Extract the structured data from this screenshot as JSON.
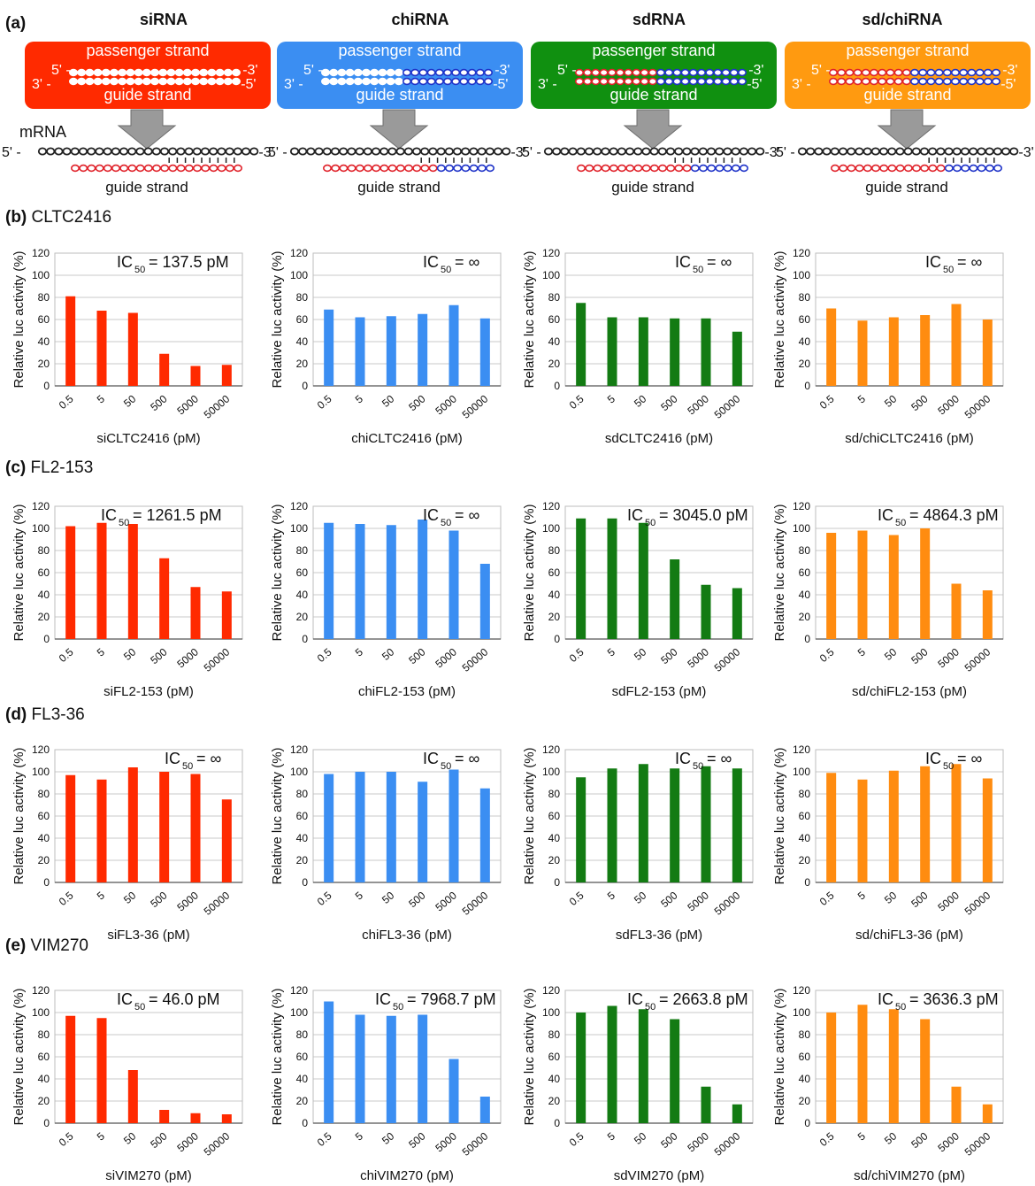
{
  "panel_a": {
    "label": "(a)",
    "columns": [
      {
        "title": "siRNA",
        "bg": "#ff2a00"
      },
      {
        "title": "chiRNA",
        "bg": "#3b8ef2"
      },
      {
        "title": "sdRNA",
        "bg": "#109010"
      },
      {
        "title": "sd/chiRNA",
        "bg": "#ff9a10"
      }
    ],
    "passenger_label": "passenger strand",
    "guide_label": "guide strand",
    "mrna_label": "mRNA",
    "end5": "5'",
    "end3": "3'",
    "end5_dash": "5' -",
    "end3_dash": "-3'",
    "end5_tail": "-5'",
    "end3_head": "3' -"
  },
  "rows": [
    {
      "label_letter": "(b)",
      "label_name": "CLTC2416"
    },
    {
      "label_letter": "(c)",
      "label_name": "FL2-153"
    },
    {
      "label_letter": "(d)",
      "label_name": "FL3-36"
    },
    {
      "label_letter": "(e)",
      "label_name": "VIM270"
    }
  ],
  "colors": {
    "si": "#ff2a00",
    "chi": "#3b8ef2",
    "sd": "#137b13",
    "sdchi": "#ff8c10"
  },
  "chart_data": [
    {
      "type": "bar",
      "row": "b",
      "color": "si",
      "categories": [
        "0.5",
        "5",
        "50",
        "500",
        "5000",
        "50000"
      ],
      "values": [
        81,
        68,
        66,
        29,
        18,
        19
      ],
      "ic50_value": "= 137.5 pM",
      "xlabel": "siCLTC2416 (pM)",
      "ylabel": "Relative luc activity (%)",
      "ylim": [
        0,
        120
      ],
      "yticks": [
        0,
        20,
        40,
        60,
        80,
        100,
        120
      ]
    },
    {
      "type": "bar",
      "row": "b",
      "color": "chi",
      "categories": [
        "0.5",
        "5",
        "50",
        "500",
        "5000",
        "50000"
      ],
      "values": [
        69,
        62,
        63,
        65,
        73,
        61
      ],
      "ic50_value": "= ∞",
      "xlabel": "chiCLTC2416 (pM)",
      "ylabel": "Relative luc activity (%)",
      "ylim": [
        0,
        120
      ],
      "yticks": [
        0,
        20,
        40,
        60,
        80,
        100,
        120
      ]
    },
    {
      "type": "bar",
      "row": "b",
      "color": "sd",
      "categories": [
        "0.5",
        "5",
        "50",
        "500",
        "5000",
        "50000"
      ],
      "values": [
        75,
        62,
        62,
        61,
        61,
        49
      ],
      "ic50_value": "= ∞",
      "xlabel": "sdCLTC2416 (pM)",
      "ylabel": "Relative luc activity (%)",
      "ylim": [
        0,
        120
      ],
      "yticks": [
        0,
        20,
        40,
        60,
        80,
        100,
        120
      ]
    },
    {
      "type": "bar",
      "row": "b",
      "color": "sdchi",
      "categories": [
        "0.5",
        "5",
        "50",
        "500",
        "5000",
        "50000"
      ],
      "values": [
        70,
        59,
        62,
        64,
        74,
        60
      ],
      "ic50_value": "= ∞",
      "xlabel": "sd/chiCLTC2416 (pM)",
      "ylabel": "Relative luc activity (%)",
      "ylim": [
        0,
        120
      ],
      "yticks": [
        0,
        20,
        40,
        60,
        80,
        100,
        120
      ]
    },
    {
      "type": "bar",
      "row": "c",
      "color": "si",
      "categories": [
        "0.5",
        "5",
        "50",
        "500",
        "5000",
        "50000"
      ],
      "values": [
        102,
        105,
        104,
        73,
        47,
        43
      ],
      "ic50_value": "= 1261.5 pM",
      "xlabel": "siFL2-153 (pM)",
      "ylabel": "Relative luc activity (%)",
      "ylim": [
        0,
        120
      ],
      "yticks": [
        0,
        20,
        40,
        60,
        80,
        100,
        120
      ]
    },
    {
      "type": "bar",
      "row": "c",
      "color": "chi",
      "categories": [
        "0.5",
        "5",
        "50",
        "500",
        "5000",
        "50000"
      ],
      "values": [
        105,
        104,
        103,
        108,
        98,
        68
      ],
      "ic50_value": "= ∞",
      "xlabel": "chiFL2-153 (pM)",
      "ylabel": "Relative luc activity (%)",
      "ylim": [
        0,
        120
      ],
      "yticks": [
        0,
        20,
        40,
        60,
        80,
        100,
        120
      ]
    },
    {
      "type": "bar",
      "row": "c",
      "color": "sd",
      "categories": [
        "0.5",
        "5",
        "50",
        "500",
        "5000",
        "50000"
      ],
      "values": [
        109,
        109,
        105,
        72,
        49,
        46
      ],
      "ic50_value": "= 3045.0 pM",
      "xlabel": "sdFL2-153 (pM)",
      "ylabel": "Relative luc activity (%)",
      "ylim": [
        0,
        120
      ],
      "yticks": [
        0,
        20,
        40,
        60,
        80,
        100,
        120
      ]
    },
    {
      "type": "bar",
      "row": "c",
      "color": "sdchi",
      "categories": [
        "0.5",
        "5",
        "50",
        "500",
        "5000",
        "50000"
      ],
      "values": [
        96,
        98,
        94,
        100,
        50,
        44
      ],
      "ic50_value": "= 4864.3 pM",
      "xlabel": "sd/chiFL2-153 (pM)",
      "ylabel": "Relative luc activity (%)",
      "ylim": [
        0,
        120
      ],
      "yticks": [
        0,
        20,
        40,
        60,
        80,
        100,
        120
      ]
    },
    {
      "type": "bar",
      "row": "d",
      "color": "si",
      "categories": [
        "0.5",
        "5",
        "50",
        "500",
        "5000",
        "50000"
      ],
      "values": [
        97,
        93,
        104,
        100,
        98,
        75
      ],
      "ic50_value": "= ∞",
      "xlabel": "siFL3-36 (pM)",
      "ylabel": "Relative luc activity (%)",
      "ylim": [
        0,
        120
      ],
      "yticks": [
        0,
        20,
        40,
        60,
        80,
        100,
        120
      ]
    },
    {
      "type": "bar",
      "row": "d",
      "color": "chi",
      "categories": [
        "0.5",
        "5",
        "50",
        "500",
        "5000",
        "50000"
      ],
      "values": [
        98,
        100,
        100,
        91,
        102,
        85
      ],
      "ic50_value": "= ∞",
      "xlabel": "chiFL3-36 (pM)",
      "ylabel": "Relative luc activity (%)",
      "ylim": [
        0,
        120
      ],
      "yticks": [
        0,
        20,
        40,
        60,
        80,
        100,
        120
      ]
    },
    {
      "type": "bar",
      "row": "d",
      "color": "sd",
      "categories": [
        "0.5",
        "5",
        "50",
        "500",
        "5000",
        "50000"
      ],
      "values": [
        95,
        103,
        107,
        103,
        105,
        103
      ],
      "ic50_value": "= ∞",
      "xlabel": "sdFL3-36 (pM)",
      "ylabel": "Relative luc activity (%)",
      "ylim": [
        0,
        120
      ],
      "yticks": [
        0,
        20,
        40,
        60,
        80,
        100,
        120
      ]
    },
    {
      "type": "bar",
      "row": "d",
      "color": "sdchi",
      "categories": [
        "0.5",
        "5",
        "50",
        "500",
        "5000",
        "50000"
      ],
      "values": [
        99,
        93,
        101,
        105,
        107,
        94
      ],
      "ic50_value": "= ∞",
      "xlabel": "sd/chiFL3-36 (pM)",
      "ylabel": "Relative luc activity (%)",
      "ylim": [
        0,
        120
      ],
      "yticks": [
        0,
        20,
        40,
        60,
        80,
        100,
        120
      ]
    },
    {
      "type": "bar",
      "row": "e",
      "color": "si",
      "categories": [
        "0.5",
        "5",
        "50",
        "500",
        "5000",
        "50000"
      ],
      "values": [
        97,
        95,
        48,
        12,
        9,
        8
      ],
      "ic50_value": "= 46.0 pM",
      "xlabel": "siVIM270 (pM)",
      "ylabel": "Relative luc activity (%)",
      "ylim": [
        0,
        120
      ],
      "yticks": [
        0,
        20,
        40,
        60,
        80,
        100,
        120
      ]
    },
    {
      "type": "bar",
      "row": "e",
      "color": "chi",
      "categories": [
        "0.5",
        "5",
        "50",
        "500",
        "5000",
        "50000"
      ],
      "values": [
        110,
        98,
        97,
        98,
        58,
        24
      ],
      "ic50_value": "= 7968.7 pM",
      "xlabel": "chiVIM270 (pM)",
      "ylabel": "Relative luc activity (%)",
      "ylim": [
        0,
        120
      ],
      "yticks": [
        0,
        20,
        40,
        60,
        80,
        100,
        120
      ]
    },
    {
      "type": "bar",
      "row": "e",
      "color": "sd",
      "categories": [
        "0.5",
        "5",
        "50",
        "500",
        "5000",
        "50000"
      ],
      "values": [
        100,
        106,
        103,
        94,
        33,
        17
      ],
      "ic50_value": "= 2663.8 pM",
      "xlabel": "sdVIM270 (pM)",
      "ylabel": "Relative luc activity (%)",
      "ylim": [
        0,
        120
      ],
      "yticks": [
        0,
        20,
        40,
        60,
        80,
        100,
        120
      ]
    },
    {
      "type": "bar",
      "row": "e",
      "color": "sdchi",
      "categories": [
        "0.5",
        "5",
        "50",
        "500",
        "5000",
        "50000"
      ],
      "values": [
        100,
        107,
        103,
        94,
        33,
        17
      ],
      "ic50_value": "= 3636.3 pM",
      "xlabel": "sd/chiVIM270 (pM)",
      "ylabel": "Relative luc activity (%)",
      "ylim": [
        0,
        120
      ],
      "yticks": [
        0,
        20,
        40,
        60,
        80,
        100,
        120
      ]
    }
  ],
  "ic50_label": "IC",
  "ic50_sub": "50"
}
